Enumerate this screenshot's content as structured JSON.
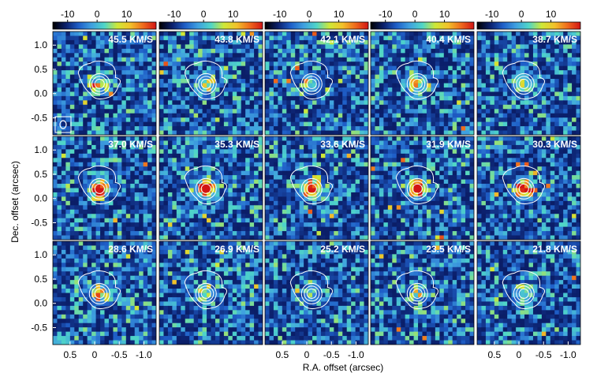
{
  "colors": {
    "colormap": [
      "#000000",
      "#0b1f6b",
      "#1f5fc8",
      "#3fa0e0",
      "#4fd6c8",
      "#cfe836",
      "#f2c12a",
      "#ef6a1c",
      "#d21414"
    ],
    "contour": "#ffffff",
    "label": "#ffffff",
    "axis_text": "#000000"
  },
  "figure": {
    "ylabel": "Dec. offset (arcsec)",
    "xlabel": "R.A. offset (arcsec)"
  },
  "chart_data": {
    "type": "heatmap",
    "layout": "3 rows x 5 columns of channel maps",
    "colorbar": {
      "ticks": [
        "-10",
        "0",
        "10"
      ],
      "range": [
        -15,
        20
      ]
    },
    "x_ticks": [
      "0.5",
      "0",
      "-0.5",
      "-1.0"
    ],
    "y_ticks": [
      "1.0",
      "0.5",
      "0.0",
      "-0.5"
    ],
    "xlim": [
      0.85,
      -1.25
    ],
    "ylim": [
      -0.85,
      1.28
    ],
    "contour_center": [
      -0.1,
      0.2
    ],
    "panels": [
      {
        "label": "45.5 KM/S",
        "peak": 0.35
      },
      {
        "label": "43.8 KM/S",
        "peak": 0.4
      },
      {
        "label": "42.1 KM/S",
        "peak": 0.3
      },
      {
        "label": "40.4 KM/S",
        "peak": 0.45
      },
      {
        "label": "38.7 KM/S",
        "peak": 0.35
      },
      {
        "label": "37.0 KM/S",
        "peak": 0.9
      },
      {
        "label": "35.3 KM/S",
        "peak": 1.0
      },
      {
        "label": "33.6 KM/S",
        "peak": 0.95
      },
      {
        "label": "31.9 KM/S",
        "peak": 1.0
      },
      {
        "label": "30.3 KM/S",
        "peak": 0.9
      },
      {
        "label": "28.6 KM/S",
        "peak": 0.5
      },
      {
        "label": "26.9 KM/S",
        "peak": 0.35
      },
      {
        "label": "25.2 KM/S",
        "peak": 0.25
      },
      {
        "label": "23.5 KM/S",
        "peak": 0.3
      },
      {
        "label": "21.8 KM/S",
        "peak": 0.35
      }
    ]
  }
}
